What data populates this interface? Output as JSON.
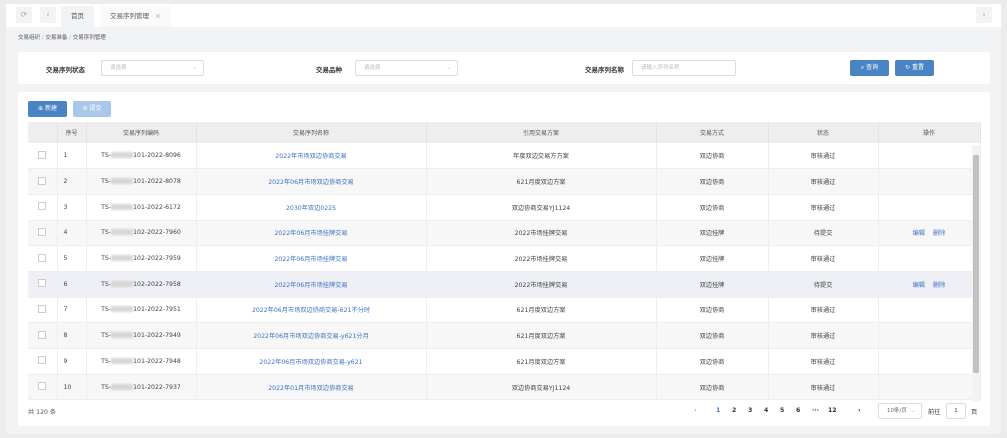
{
  "tabs": {
    "refresh_icon": "refresh-icon",
    "back_icon": "chevron-left-icon",
    "items": [
      {
        "label": "首页"
      },
      {
        "label": "交易序列管理",
        "closable": true
      }
    ],
    "close": "×",
    "forward_icon": "chevron-right-icon"
  },
  "breadcrumb": [
    "交易组织",
    "交易准备",
    "交易序列管理"
  ],
  "breadcrumb_sep": "/",
  "filters": {
    "status_label": "交易序列状态",
    "status_placeholder": "请选择",
    "variety_label": "交易品种",
    "variety_placeholder": "请选择",
    "name_label": "交易序列名称",
    "name_placeholder": "请输入序列名称",
    "query": "查询",
    "reset": "重置"
  },
  "toolbar": {
    "new": "新建",
    "submit": "提交"
  },
  "table": {
    "headers": [
      "",
      "序号",
      "交易序列编码",
      "交易序列名称",
      "引用交易方案",
      "交易方式",
      "状态",
      "操作"
    ],
    "rows": [
      {
        "no": "1",
        "code_prefix": "TS-",
        "code_suffix": "101-2022-8096",
        "name": "2022年市场双边协商交易",
        "plan": "年度双边交易方方案",
        "mode": "双边协商",
        "status": "审核通过",
        "actions": []
      },
      {
        "no": "2",
        "code_prefix": "TS-",
        "code_suffix": "101-2022-8078",
        "name": "2022年06月市场双边协商交易",
        "plan": "621月度双边方案",
        "mode": "双边协商",
        "status": "审核通过",
        "actions": []
      },
      {
        "no": "3",
        "code_prefix": "TS-",
        "code_suffix": "101-2022-6172",
        "name": "2030年双边0225",
        "plan": "双边协商交易YJ1124",
        "mode": "双边协商",
        "status": "审核通过",
        "actions": []
      },
      {
        "no": "4",
        "code_prefix": "TS-",
        "code_suffix": "102-2022-7960",
        "name": "2022年06月市场挂牌交易",
        "plan": "2022市场挂牌交易",
        "mode": "双边挂牌",
        "status": "待提交",
        "actions": [
          "编辑",
          "删除"
        ]
      },
      {
        "no": "5",
        "code_prefix": "TS-",
        "code_suffix": "102-2022-7959",
        "name": "2022年06月市场挂牌交易",
        "plan": "2022市场挂牌交易",
        "mode": "双边挂牌",
        "status": "审核通过",
        "actions": []
      },
      {
        "no": "6",
        "code_prefix": "TS-",
        "code_suffix": "102-2022-7958",
        "name": "2022年06月市场挂牌交易",
        "plan": "2022市场挂牌交易",
        "mode": "双边挂牌",
        "status": "待提交",
        "actions": [
          "编辑",
          "删除"
        ]
      },
      {
        "no": "7",
        "code_prefix": "TS-",
        "code_suffix": "101-2022-7951",
        "name": "2022年06月市场双边协商交易-621不分时",
        "plan": "621月度双边方案",
        "mode": "双边协商",
        "status": "审核通过",
        "actions": []
      },
      {
        "no": "8",
        "code_prefix": "TS-",
        "code_suffix": "101-2022-7949",
        "name": "2022年06月市场双边协商交易-y621分月",
        "plan": "621月度双边方案",
        "mode": "双边协商",
        "status": "审核通过",
        "actions": []
      },
      {
        "no": "9",
        "code_prefix": "TS-",
        "code_suffix": "101-2022-7948",
        "name": "2022年06月市场双边协商交易-y621",
        "plan": "621月度双边方案",
        "mode": "双边协商",
        "status": "审核通过",
        "actions": []
      },
      {
        "no": "10",
        "code_prefix": "TS-",
        "code_suffix": "101-2022-7937",
        "name": "2022年01月市场双边协商交易",
        "plan": "双边协商交易YJ1124",
        "mode": "双边协商",
        "status": "审核通过",
        "actions": []
      }
    ]
  },
  "footer": {
    "total": "共 120 条",
    "prev": "‹",
    "next": "›",
    "pages": [
      "1",
      "2",
      "3",
      "4",
      "5",
      "6",
      "···",
      "12"
    ],
    "current_page": "1",
    "page_size": "10条/页",
    "goto_label": "前往",
    "goto_value": "1",
    "goto_suffix": "页"
  },
  "colors": {
    "primary": "#4a84c4",
    "link": "#3d72c4",
    "disabled": "#a9c7e8"
  }
}
